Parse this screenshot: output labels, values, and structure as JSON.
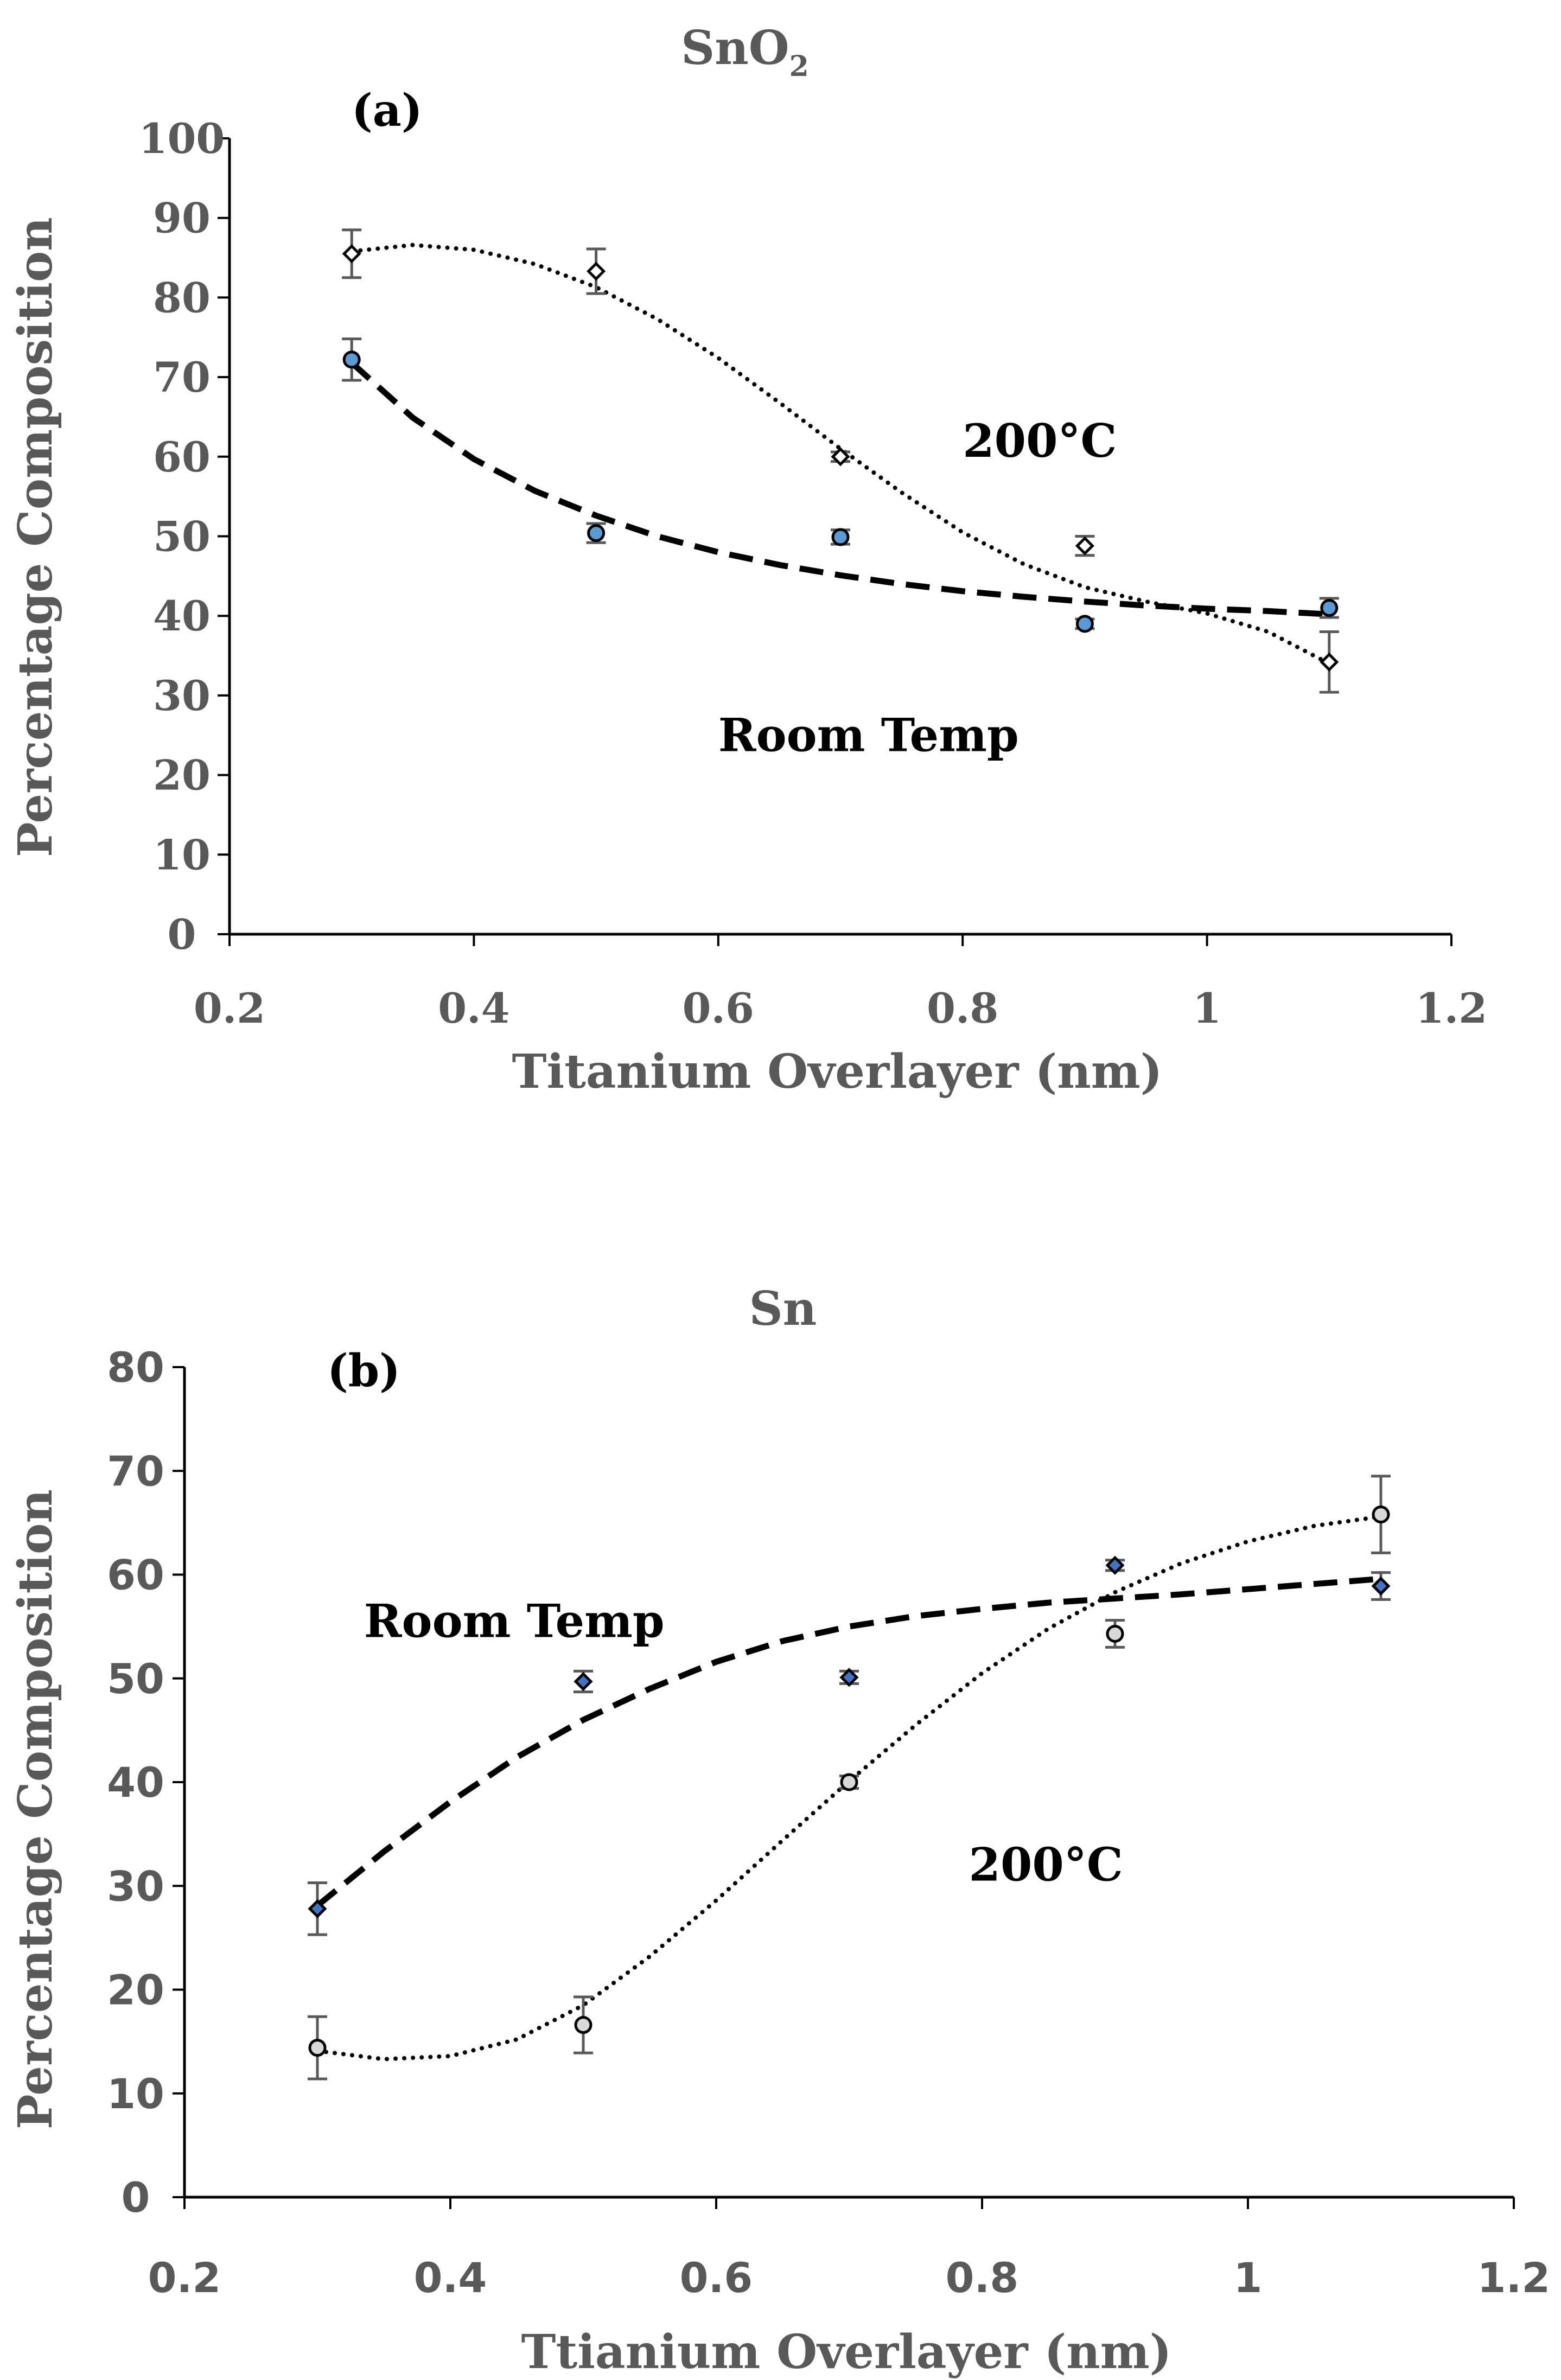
{
  "chart_data": [
    {
      "type": "scatter",
      "panel_label": "(a)",
      "title": "SnO",
      "title_subscript": "2",
      "xlabel": "Titanium Overlayer (nm)",
      "ylabel": "Percentage Composition",
      "xlim": [
        0.2,
        1.2
      ],
      "ylim": [
        0,
        100
      ],
      "xticks": [
        0.2,
        0.4,
        0.6,
        0.8,
        1,
        1.2
      ],
      "xtick_labels": [
        "0.2",
        "0.4",
        "0.6",
        "0.8",
        "1",
        "1.2"
      ],
      "yticks": [
        0,
        10,
        20,
        30,
        40,
        50,
        60,
        70,
        80,
        90,
        100
      ],
      "ytick_labels": [
        "0",
        "10",
        "20",
        "30",
        "40",
        "50",
        "60",
        "70",
        "80",
        "90",
        "100"
      ],
      "series": [
        {
          "name": "200°C",
          "marker": "diamond",
          "marker_fill": "#ffffff",
          "trendline": "dotted",
          "x": [
            0.3,
            0.5,
            0.7,
            0.9,
            1.1
          ],
          "y": [
            85.5,
            83.3,
            60.0,
            48.8,
            34.2
          ],
          "error": [
            3.0,
            2.8,
            0.6,
            1.2,
            3.8
          ],
          "fit": [
            [
              0.3,
              85.8
            ],
            [
              0.35,
              86.6
            ],
            [
              0.4,
              86.0
            ],
            [
              0.45,
              84.2
            ],
            [
              0.5,
              81.3
            ],
            [
              0.55,
              77.3
            ],
            [
              0.6,
              72.4
            ],
            [
              0.65,
              66.8
            ],
            [
              0.7,
              61.0
            ],
            [
              0.75,
              55.5
            ],
            [
              0.8,
              50.5
            ],
            [
              0.85,
              46.5
            ],
            [
              0.9,
              43.6
            ],
            [
              0.95,
              41.8
            ],
            [
              1.0,
              40.3
            ],
            [
              1.05,
              38.0
            ],
            [
              1.1,
              34.0
            ]
          ]
        },
        {
          "name": "Room Temp",
          "marker": "circle",
          "marker_fill": "#5b9bd5",
          "trendline": "dashed",
          "x": [
            0.3,
            0.5,
            0.7,
            0.9,
            1.1
          ],
          "y": [
            72.2,
            50.4,
            49.9,
            39.0,
            41.0
          ],
          "error": [
            2.6,
            1.2,
            0.9,
            0.6,
            1.2
          ],
          "fit": [
            [
              0.3,
              71.8
            ],
            [
              0.35,
              64.9
            ],
            [
              0.4,
              59.7
            ],
            [
              0.45,
              55.7
            ],
            [
              0.5,
              52.6
            ],
            [
              0.55,
              50.0
            ],
            [
              0.6,
              48.0
            ],
            [
              0.65,
              46.4
            ],
            [
              0.7,
              45.1
            ],
            [
              0.75,
              44.0
            ],
            [
              0.8,
              43.1
            ],
            [
              0.85,
              42.4
            ],
            [
              0.9,
              41.8
            ],
            [
              0.95,
              41.3
            ],
            [
              1.0,
              40.9
            ],
            [
              1.05,
              40.6
            ],
            [
              1.1,
              40.2
            ]
          ]
        }
      ],
      "annotations": [
        {
          "text": "200°C",
          "x": 0.8,
          "y": 60
        },
        {
          "text": "Room Temp",
          "x": 0.6,
          "y": 23
        }
      ]
    },
    {
      "type": "scatter",
      "panel_label": "(b)",
      "title": "Sn",
      "xlabel": "Ttianium Overlayer (nm)",
      "ylabel": "Percentage Composition",
      "xlim": [
        0.2,
        1.2
      ],
      "ylim": [
        0,
        80
      ],
      "xticks": [
        0.2,
        0.4,
        0.6,
        0.8,
        1,
        1.2
      ],
      "xtick_labels": [
        "0.2",
        "0.4",
        "0.6",
        "0.8",
        "1",
        "1.2"
      ],
      "yticks": [
        0,
        10,
        20,
        30,
        40,
        50,
        60,
        70,
        80
      ],
      "ytick_labels": [
        "0",
        "10",
        "20",
        "30",
        "40",
        "50",
        "60",
        "70",
        "80"
      ],
      "series": [
        {
          "name": "Room Temp",
          "marker": "diamond",
          "marker_fill": "#4472c4",
          "trendline": "dashed",
          "x": [
            0.3,
            0.5,
            0.7,
            0.9,
            1.1
          ],
          "y": [
            27.8,
            49.7,
            50.1,
            60.9,
            58.9
          ],
          "error": [
            2.5,
            1.0,
            0.6,
            0.5,
            1.3
          ],
          "fit": [
            [
              0.3,
              28.1
            ],
            [
              0.35,
              33.3
            ],
            [
              0.4,
              38.1
            ],
            [
              0.45,
              42.4
            ],
            [
              0.5,
              46.0
            ],
            [
              0.55,
              49.0
            ],
            [
              0.6,
              51.6
            ],
            [
              0.65,
              53.6
            ],
            [
              0.7,
              55.0
            ],
            [
              0.75,
              56.0
            ],
            [
              0.8,
              56.7
            ],
            [
              0.85,
              57.3
            ],
            [
              0.9,
              57.7
            ],
            [
              0.95,
              58.1
            ],
            [
              1.0,
              58.6
            ],
            [
              1.05,
              59.1
            ],
            [
              1.1,
              59.6
            ]
          ]
        },
        {
          "name": "200°C",
          "marker": "circle",
          "marker_fill": "#d9d9d9",
          "trendline": "dotted",
          "x": [
            0.3,
            0.5,
            0.7,
            0.9,
            1.1
          ],
          "y": [
            14.4,
            16.6,
            40.0,
            54.3,
            65.8
          ],
          "error": [
            3.0,
            2.7,
            0.6,
            1.3,
            3.7
          ],
          "fit": [
            [
              0.3,
              14.1
            ],
            [
              0.35,
              13.3
            ],
            [
              0.4,
              13.6
            ],
            [
              0.45,
              15.2
            ],
            [
              0.5,
              18.5
            ],
            [
              0.55,
              23.2
            ],
            [
              0.6,
              28.6
            ],
            [
              0.65,
              34.4
            ],
            [
              0.7,
              40.1
            ],
            [
              0.75,
              45.5
            ],
            [
              0.8,
              50.5
            ],
            [
              0.85,
              54.8
            ],
            [
              0.9,
              58.3
            ],
            [
              0.95,
              61.1
            ],
            [
              1.0,
              63.2
            ],
            [
              1.05,
              64.7
            ],
            [
              1.1,
              65.6
            ]
          ]
        }
      ],
      "annotations": [
        {
          "text": "Room Temp",
          "x": 0.335,
          "y": 54
        },
        {
          "text": "200°C",
          "x": 0.79,
          "y": 30.5
        }
      ]
    }
  ]
}
